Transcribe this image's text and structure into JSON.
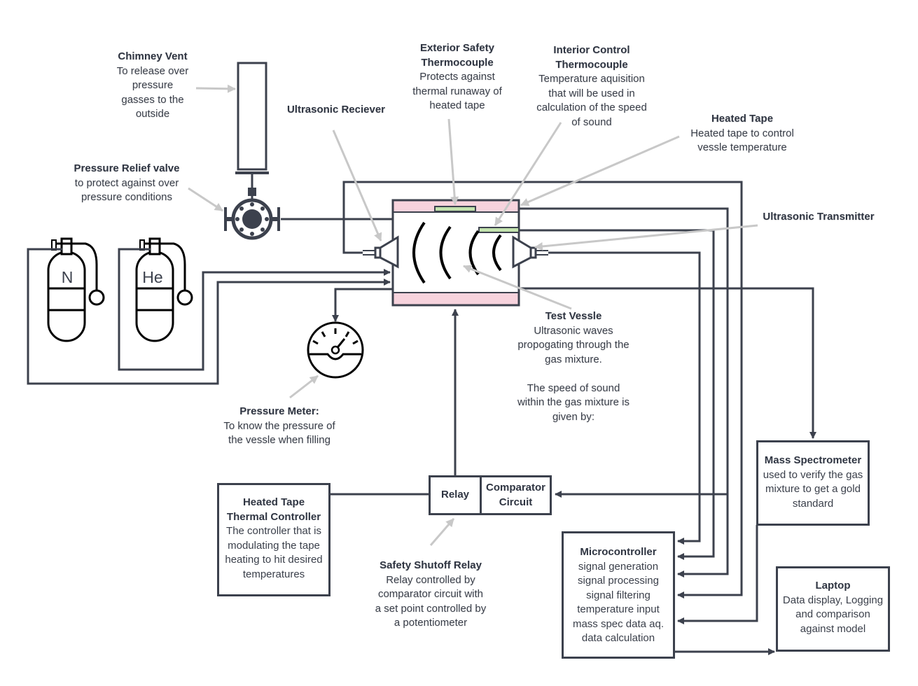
{
  "labels": {
    "chimney": {
      "title": "Chimney Vent",
      "lines": [
        "To release over",
        "pressure",
        "gasses to the",
        "outside"
      ]
    },
    "exterior_tc": {
      "title": [
        "Exterior Safety",
        "Thermocouple"
      ],
      "lines": [
        "Protects against",
        "thermal runaway of",
        "heated tape"
      ]
    },
    "interior_tc": {
      "title": [
        "Interior Control",
        "Thermocouple"
      ],
      "lines": [
        "Temperature aquisition",
        "that will be used in",
        "calculation of the speed",
        "of sound"
      ]
    },
    "receiver": {
      "title": "Ultrasonic Reciever"
    },
    "heated_tape": {
      "title": "Heated Tape",
      "lines": [
        "Heated tape to control",
        "vessle temperature"
      ]
    },
    "relief_valve": {
      "title": "Pressure Relief valve",
      "lines": [
        "to protect against over",
        "pressure conditions"
      ]
    },
    "transmitter": {
      "title": "Ultrasonic Transmitter"
    },
    "test_vessel": {
      "title": "Test Vessle",
      "lines": [
        "Ultrasonic waves",
        "propogating through  the",
        "gas mixture.",
        "",
        "The speed of sound",
        "within the gas mixture is",
        "given by:"
      ]
    },
    "pressure_meter": {
      "title": "Pressure Meter:",
      "lines": [
        "To know the pressure of",
        "the vessle when filling"
      ]
    },
    "shutoff_relay": {
      "title": "Safety Shutoff Relay",
      "lines": [
        "Relay controlled by",
        "comparator circuit with",
        "a set point controlled by",
        "a potentiometer"
      ]
    }
  },
  "boxes": {
    "thermal_controller": {
      "title": [
        "Heated Tape",
        "Thermal Controller"
      ],
      "lines": [
        "The controller that is",
        "modulating the tape",
        "heating to hit desired",
        "temperatures"
      ]
    },
    "relay": {
      "title": "Relay"
    },
    "comparator": {
      "title": [
        "Comparator",
        "Circuit"
      ]
    },
    "mass_spec": {
      "title": "Mass Spectrometer",
      "lines": [
        "used to verify the gas",
        "mixture to get a gold",
        "standard"
      ]
    },
    "microcontroller": {
      "title": "Microcontroller",
      "lines": [
        "signal generation",
        "signal processing",
        "signal filtering",
        "temperature input",
        "mass spec data aq.",
        "data calculation"
      ]
    },
    "laptop": {
      "title": "Laptop",
      "lines": [
        "Data display, Logging",
        "and comparison",
        "against model"
      ]
    }
  },
  "tanks": {
    "nitrogen": "N",
    "helium": "He"
  },
  "colors": {
    "line": "#3c414d",
    "pointer": "#c8c8c8",
    "vessel_band": "#f7d3dd",
    "tape": "#c3e3ae"
  }
}
